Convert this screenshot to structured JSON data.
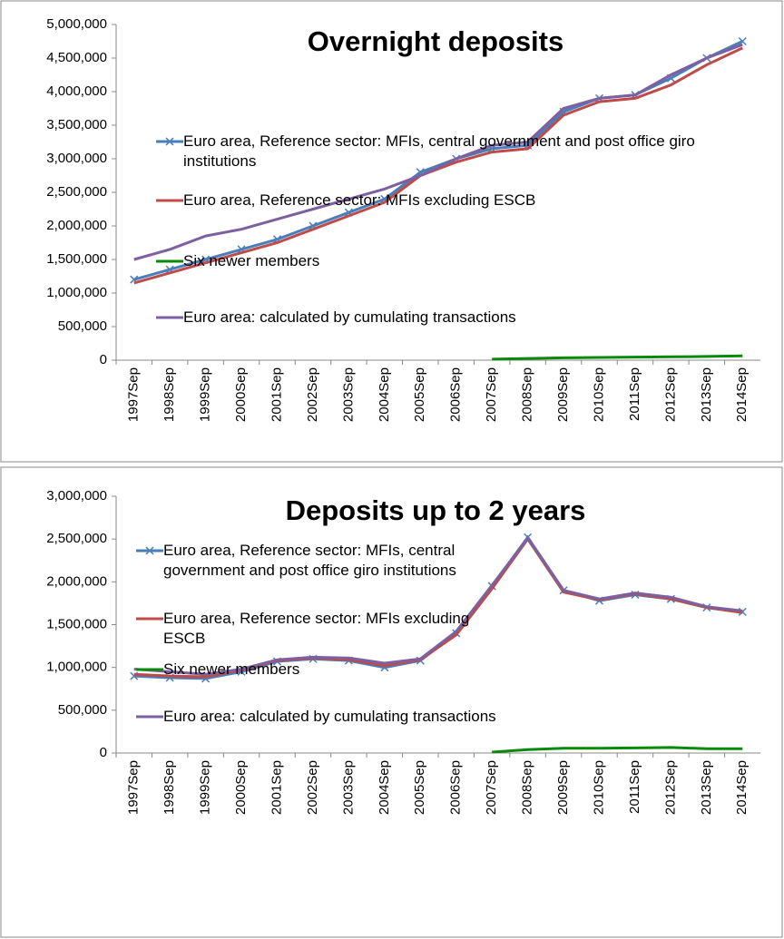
{
  "chart_data": [
    {
      "type": "line",
      "title": "Overnight deposits",
      "legend": "left",
      "grid": false,
      "categories": [
        "1997Sep",
        "1998Sep",
        "1999Sep",
        "2000Sep",
        "2001Sep",
        "2002Sep",
        "2003Sep",
        "2004Sep",
        "2005Sep",
        "2006Sep",
        "2007Sep",
        "2008Sep",
        "2009Sep",
        "2010Sep",
        "2011Sep",
        "2012Sep",
        "2013Sep",
        "2014Sep"
      ],
      "ylim": [
        0,
        5000000
      ],
      "yticks": [
        0,
        {
          "value": 500000,
          "label": "500,000"
        },
        {
          "value": 1000000,
          "label": "1,000,000"
        },
        {
          "value": 1500000,
          "label": "1,500,000"
        },
        {
          "value": 2000000,
          "label": "2,000,000"
        },
        {
          "value": 2500000,
          "label": "2,500,000"
        },
        {
          "value": 3000000,
          "label": "3,000,000"
        },
        {
          "value": 3500000,
          "label": "3,500,000"
        },
        {
          "value": 4000000,
          "label": "4,000,000"
        },
        {
          "value": 4500000,
          "label": "4,500,000"
        },
        {
          "value": 5000000,
          "label": "5,000,000"
        }
      ],
      "series": [
        {
          "name": "Euro area, Reference sector: MFIs, central government and post office giro institutions",
          "color": "#4a7ebb",
          "marker": "x",
          "values": [
            1200000,
            1350000,
            1500000,
            1650000,
            1800000,
            2000000,
            2200000,
            2400000,
            2800000,
            3000000,
            3150000,
            3200000,
            3700000,
            3900000,
            3950000,
            4200000,
            4500000,
            4750000
          ]
        },
        {
          "name": "Euro area, Reference sector: MFIs excluding ESCB",
          "color": "#be4b48",
          "values": [
            1150000,
            1300000,
            1450000,
            1600000,
            1750000,
            1950000,
            2150000,
            2350000,
            2750000,
            2950000,
            3100000,
            3150000,
            3650000,
            3850000,
            3900000,
            4100000,
            4400000,
            4650000
          ]
        },
        {
          "name": "Six newer members",
          "color": "#0a8a0a",
          "values": [
            null,
            null,
            null,
            null,
            null,
            null,
            null,
            null,
            null,
            null,
            15000,
            25000,
            35000,
            40000,
            45000,
            50000,
            55000,
            65000
          ]
        },
        {
          "name": "Euro area: calculated by cumulating transactions",
          "color": "#7d60a0",
          "values": [
            1500000,
            1650000,
            1850000,
            1950000,
            2100000,
            2250000,
            2400000,
            2550000,
            2750000,
            3000000,
            3200000,
            3250000,
            3750000,
            3900000,
            3950000,
            4250000,
            4500000,
            4700000
          ]
        }
      ]
    },
    {
      "type": "line",
      "title": "Deposits up to 2 years",
      "legend": "left",
      "grid": false,
      "categories": [
        "1997Sep",
        "1998Sep",
        "1999Sep",
        "2000Sep",
        "2001Sep",
        "2002Sep",
        "2003Sep",
        "2004Sep",
        "2005Sep",
        "2006Sep",
        "2007Sep",
        "2008Sep",
        "2009Sep",
        "2010Sep",
        "2011Sep",
        "2012Sep",
        "2013Sep",
        "2014Sep"
      ],
      "ylim": [
        0,
        3000000
      ],
      "yticks": [
        0,
        {
          "value": 500000,
          "label": "500,000"
        },
        {
          "value": 1000000,
          "label": "1,000,000"
        },
        {
          "value": 1500000,
          "label": "1,500,000"
        },
        {
          "value": 2000000,
          "label": "2,000,000"
        },
        {
          "value": 2500000,
          "label": "2,500,000"
        },
        {
          "value": 3000000,
          "label": "3,000,000"
        }
      ],
      "series": [
        {
          "name": "Euro area, Reference sector: MFIs, central government and post office giro institutions",
          "color": "#4a7ebb",
          "marker": "x",
          "values": [
            900000,
            880000,
            870000,
            950000,
            1070000,
            1100000,
            1080000,
            1000000,
            1080000,
            1400000,
            1950000,
            2520000,
            1900000,
            1780000,
            1850000,
            1800000,
            1700000,
            1650000
          ]
        },
        {
          "name": "Euro area, Reference sector: MFIs excluding ESCB",
          "color": "#be4b48",
          "values": [
            920000,
            900000,
            890000,
            970000,
            1080000,
            1110000,
            1090000,
            1020000,
            1090000,
            1380000,
            1920000,
            2500000,
            1880000,
            1790000,
            1860000,
            1800000,
            1700000,
            1640000
          ]
        },
        {
          "name": "Six newer members",
          "color": "#0a8a0a",
          "values": [
            null,
            null,
            null,
            null,
            null,
            null,
            null,
            null,
            null,
            null,
            10000,
            40000,
            55000,
            55000,
            60000,
            65000,
            50000,
            50000
          ]
        },
        {
          "name": "Euro area: calculated by cumulating transactions",
          "color": "#7d60a0",
          "values": [
            980000,
            950000,
            920000,
            980000,
            1090000,
            1120000,
            1110000,
            1050000,
            1100000,
            1420000,
            1960000,
            2510000,
            1900000,
            1800000,
            1870000,
            1820000,
            1710000,
            1660000
          ]
        }
      ]
    }
  ]
}
